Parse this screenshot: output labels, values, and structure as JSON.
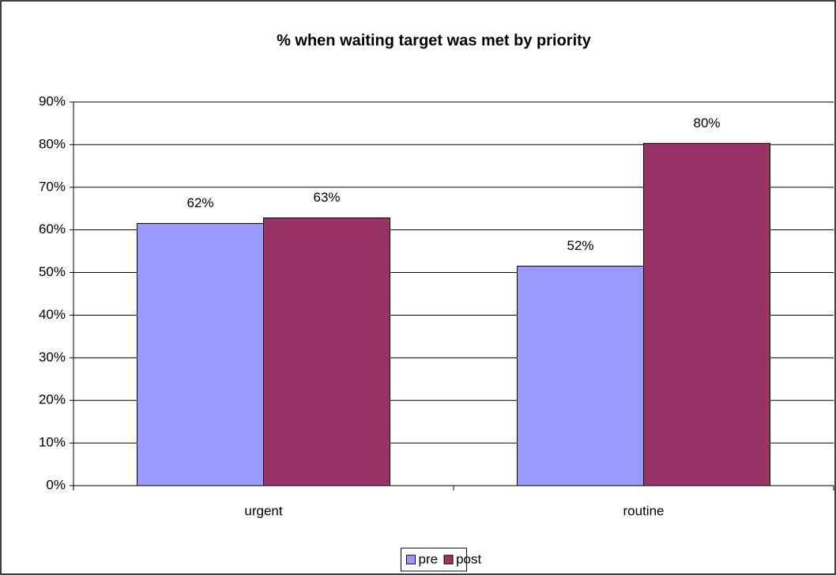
{
  "chart_data": {
    "type": "bar",
    "title": "% when waiting target was met by priority",
    "categories": [
      "urgent",
      "routine"
    ],
    "series": [
      {
        "name": "pre",
        "color": "#9999ff",
        "values": [
          61.5,
          51.5
        ],
        "value_labels": [
          "62%",
          "52%"
        ]
      },
      {
        "name": "post",
        "color": "#993366",
        "values": [
          62.8,
          80.3
        ],
        "value_labels": [
          "63%",
          "80%"
        ]
      }
    ],
    "ylim": [
      0,
      90
    ],
    "yticks": [
      {
        "value": 0,
        "label": "0%"
      },
      {
        "value": 10,
        "label": "10%"
      },
      {
        "value": 20,
        "label": "20%"
      },
      {
        "value": 30,
        "label": "30%"
      },
      {
        "value": 40,
        "label": "40%"
      },
      {
        "value": 50,
        "label": "50%"
      },
      {
        "value": 60,
        "label": "60%"
      },
      {
        "value": 70,
        "label": "70%"
      },
      {
        "value": 80,
        "label": "80%"
      },
      {
        "value": 90,
        "label": "90%"
      }
    ],
    "grid": true,
    "legend": "bottom"
  }
}
